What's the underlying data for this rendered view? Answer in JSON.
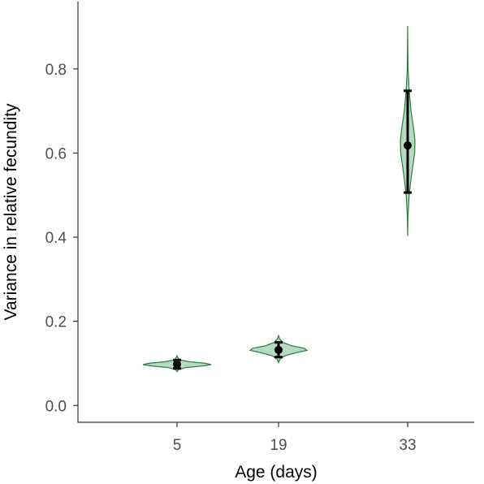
{
  "chart_data": {
    "type": "violin",
    "xlabel": "Age (days)",
    "ylabel": "Variance in relative fecundity",
    "categories": [
      "5",
      "19",
      "33"
    ],
    "ylim": [
      -0.04,
      0.96
    ],
    "yticks": [
      0.0,
      0.2,
      0.4,
      0.6,
      0.8
    ],
    "ytick_labels": [
      "0.0",
      "0.2",
      "0.4",
      "0.6",
      "0.8"
    ],
    "grid": false,
    "legend": "none",
    "colors": {
      "fill": "#a9d3b6",
      "outline": "#2e7d3e",
      "point": "#000000"
    },
    "series": [
      {
        "category": "5",
        "mean": 0.098,
        "ci": [
          0.088,
          0.108
        ],
        "violin_min": 0.08,
        "violin_max": 0.118,
        "density_profile": [
          [
            0.08,
            0.0
          ],
          [
            0.085,
            0.04
          ],
          [
            0.09,
            0.25
          ],
          [
            0.094,
            0.75
          ],
          [
            0.097,
            1.0
          ],
          [
            0.1,
            0.85
          ],
          [
            0.104,
            0.35
          ],
          [
            0.108,
            0.1
          ],
          [
            0.113,
            0.03
          ],
          [
            0.118,
            0.0
          ]
        ]
      },
      {
        "category": "19",
        "mean": 0.132,
        "ci": [
          0.115,
          0.15
        ],
        "violin_min": 0.102,
        "violin_max": 0.166,
        "density_profile": [
          [
            0.102,
            0.0
          ],
          [
            0.11,
            0.05
          ],
          [
            0.118,
            0.22
          ],
          [
            0.125,
            0.6
          ],
          [
            0.131,
            1.0
          ],
          [
            0.136,
            0.9
          ],
          [
            0.142,
            0.45
          ],
          [
            0.15,
            0.15
          ],
          [
            0.158,
            0.04
          ],
          [
            0.166,
            0.0
          ]
        ]
      },
      {
        "category": "33",
        "mean": 0.618,
        "ci": [
          0.506,
          0.748
        ],
        "violin_min": 0.403,
        "violin_max": 0.902,
        "density_profile": [
          [
            0.403,
            0.0
          ],
          [
            0.45,
            0.05
          ],
          [
            0.5,
            0.2
          ],
          [
            0.55,
            0.55
          ],
          [
            0.6,
            0.95
          ],
          [
            0.63,
            1.0
          ],
          [
            0.66,
            0.8
          ],
          [
            0.7,
            0.45
          ],
          [
            0.75,
            0.2
          ],
          [
            0.8,
            0.06
          ],
          [
            0.85,
            0.02
          ],
          [
            0.902,
            0.0
          ]
        ]
      }
    ]
  }
}
